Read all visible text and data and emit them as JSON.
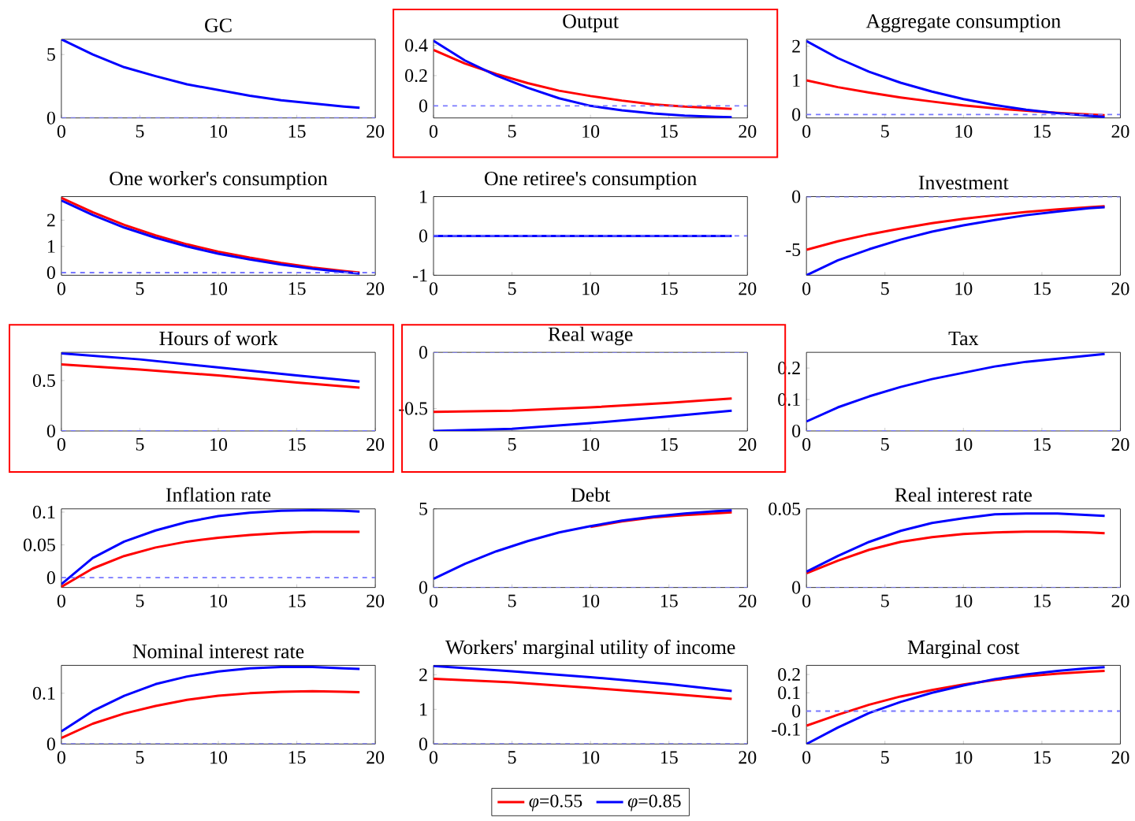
{
  "chart_data": [
    {
      "type": "line",
      "title": "GC",
      "xlim": [
        0,
        20
      ],
      "xticks": [
        0,
        5,
        10,
        15,
        20
      ],
      "ylim": [
        0,
        6.2
      ],
      "yticks": [
        0,
        5
      ],
      "ref_lines": [
        {
          "axis": "y",
          "value": 0,
          "color": "#7777ff",
          "line_style": "dashed"
        }
      ],
      "series": [
        {
          "color": "#0000ff",
          "x": [
            0,
            2,
            4,
            6,
            8,
            10,
            12,
            14,
            16,
            18,
            19
          ],
          "values": [
            6.2,
            5.0,
            4.0,
            3.3,
            2.65,
            2.2,
            1.75,
            1.4,
            1.15,
            0.9,
            0.8
          ]
        }
      ]
    },
    {
      "type": "line",
      "title": "Output",
      "xlim": [
        0,
        20
      ],
      "xticks": [
        0,
        5,
        10,
        15,
        20
      ],
      "ylim": [
        -0.08,
        0.44
      ],
      "yticks": [
        0,
        0.2,
        0.4
      ],
      "ref_lines": [
        {
          "axis": "y",
          "value": 0,
          "color": "#7777ff",
          "line_style": "dashed"
        }
      ],
      "series": [
        {
          "color": "#ff0000",
          "x": [
            0,
            2,
            4,
            6,
            8,
            10,
            12,
            14,
            16,
            18,
            19
          ],
          "values": [
            0.37,
            0.28,
            0.21,
            0.15,
            0.1,
            0.065,
            0.035,
            0.01,
            -0.005,
            -0.015,
            -0.02
          ]
        },
        {
          "color": "#0000ff",
          "x": [
            0,
            2,
            4,
            6,
            8,
            10,
            12,
            14,
            16,
            18,
            19
          ],
          "values": [
            0.43,
            0.3,
            0.2,
            0.12,
            0.05,
            0.0,
            -0.03,
            -0.05,
            -0.065,
            -0.073,
            -0.075
          ]
        }
      ]
    },
    {
      "type": "line",
      "title": "Aggregate consumption",
      "xlim": [
        0,
        20
      ],
      "xticks": [
        0,
        5,
        10,
        15,
        20
      ],
      "ylim": [
        -0.1,
        2.2
      ],
      "yticks": [
        0,
        1,
        2
      ],
      "ref_lines": [
        {
          "axis": "y",
          "value": 0,
          "color": "#7777ff",
          "line_style": "dashed"
        }
      ],
      "series": [
        {
          "color": "#ff0000",
          "x": [
            0,
            2,
            4,
            6,
            8,
            10,
            12,
            14,
            16,
            18,
            19
          ],
          "values": [
            1.0,
            0.8,
            0.64,
            0.5,
            0.38,
            0.27,
            0.18,
            0.11,
            0.05,
            0.0,
            -0.02
          ]
        },
        {
          "color": "#0000ff",
          "x": [
            0,
            2,
            4,
            6,
            8,
            10,
            12,
            14,
            16,
            18,
            19
          ],
          "values": [
            2.15,
            1.65,
            1.25,
            0.93,
            0.67,
            0.45,
            0.28,
            0.14,
            0.04,
            -0.04,
            -0.07
          ]
        }
      ]
    },
    {
      "type": "line",
      "title": "One worker's consumption",
      "xlim": [
        0,
        20
      ],
      "xticks": [
        0,
        5,
        10,
        15,
        20
      ],
      "ylim": [
        -0.1,
        2.9
      ],
      "yticks": [
        0,
        1,
        2
      ],
      "ref_lines": [
        {
          "axis": "y",
          "value": 0,
          "color": "#7777ff",
          "line_style": "dashed"
        }
      ],
      "series": [
        {
          "color": "#ff0000",
          "x": [
            0,
            2,
            4,
            6,
            8,
            10,
            12,
            14,
            16,
            18,
            19
          ],
          "values": [
            2.85,
            2.3,
            1.82,
            1.42,
            1.08,
            0.8,
            0.57,
            0.37,
            0.2,
            0.06,
            0.0
          ]
        },
        {
          "color": "#0000ff",
          "x": [
            0,
            2,
            4,
            6,
            8,
            10,
            12,
            14,
            16,
            18,
            19
          ],
          "values": [
            2.75,
            2.2,
            1.72,
            1.33,
            1.0,
            0.72,
            0.5,
            0.31,
            0.15,
            0.02,
            -0.04
          ]
        }
      ]
    },
    {
      "type": "line",
      "title": "One retiree's consumption",
      "xlim": [
        0,
        20
      ],
      "xticks": [
        0,
        5,
        10,
        15,
        20
      ],
      "ylim": [
        -1,
        1
      ],
      "yticks": [
        -1,
        0,
        1
      ],
      "ref_lines": [
        {
          "axis": "y",
          "value": 0,
          "color": "#7777ff",
          "line_style": "dashed"
        }
      ],
      "series": [
        {
          "color": "#0000ff",
          "x": [
            0,
            19
          ],
          "values": [
            0,
            0
          ]
        }
      ]
    },
    {
      "type": "line",
      "title": "Investment",
      "xlim": [
        0,
        20
      ],
      "xticks": [
        0,
        5,
        10,
        15,
        20
      ],
      "ylim": [
        -7.4,
        0
      ],
      "yticks": [
        -5,
        0
      ],
      "ref_lines": [
        {
          "axis": "y",
          "value": 0,
          "color": "#7777ff",
          "line_style": "dashed"
        }
      ],
      "series": [
        {
          "color": "#ff0000",
          "x": [
            0,
            2,
            4,
            6,
            8,
            10,
            12,
            14,
            16,
            18,
            19
          ],
          "values": [
            -5.0,
            -4.2,
            -3.55,
            -3.0,
            -2.5,
            -2.1,
            -1.75,
            -1.45,
            -1.2,
            -1.0,
            -0.9
          ]
        },
        {
          "color": "#0000ff",
          "x": [
            0,
            2,
            4,
            6,
            8,
            10,
            12,
            14,
            16,
            18,
            19
          ],
          "values": [
            -7.4,
            -6.0,
            -4.95,
            -4.05,
            -3.3,
            -2.7,
            -2.2,
            -1.75,
            -1.4,
            -1.1,
            -1.0
          ]
        }
      ]
    },
    {
      "type": "line",
      "title": "Hours of work",
      "xlim": [
        0,
        20
      ],
      "xticks": [
        0,
        5,
        10,
        15,
        20
      ],
      "ylim": [
        0,
        0.78
      ],
      "yticks": [
        0,
        0.5
      ],
      "ref_lines": [
        {
          "axis": "y",
          "value": 0,
          "color": "#7777ff",
          "line_style": "dashed"
        }
      ],
      "series": [
        {
          "color": "#ff0000",
          "x": [
            0,
            5,
            10,
            15,
            19
          ],
          "values": [
            0.66,
            0.61,
            0.55,
            0.48,
            0.43
          ]
        },
        {
          "color": "#0000ff",
          "x": [
            0,
            5,
            10,
            15,
            19
          ],
          "values": [
            0.77,
            0.71,
            0.63,
            0.55,
            0.49
          ]
        }
      ]
    },
    {
      "type": "line",
      "title": "Real wage",
      "xlim": [
        0,
        20
      ],
      "xticks": [
        0,
        5,
        10,
        15,
        20
      ],
      "ylim": [
        -0.7,
        0
      ],
      "yticks": [
        -0.5,
        0
      ],
      "ref_lines": [
        {
          "axis": "y",
          "value": 0,
          "color": "#7777ff",
          "line_style": "dashed"
        }
      ],
      "series": [
        {
          "color": "#ff0000",
          "x": [
            0,
            5,
            10,
            15,
            19
          ],
          "values": [
            -0.53,
            -0.52,
            -0.49,
            -0.45,
            -0.41
          ]
        },
        {
          "color": "#0000ff",
          "x": [
            0,
            5,
            10,
            15,
            19
          ],
          "values": [
            -0.7,
            -0.68,
            -0.63,
            -0.57,
            -0.52
          ]
        }
      ]
    },
    {
      "type": "line",
      "title": "Tax",
      "xlim": [
        0,
        20
      ],
      "xticks": [
        0,
        5,
        10,
        15,
        20
      ],
      "ylim": [
        0,
        0.25
      ],
      "yticks": [
        0,
        0.1,
        0.2
      ],
      "ref_lines": [
        {
          "axis": "y",
          "value": 0,
          "color": "#7777ff",
          "line_style": "dashed"
        }
      ],
      "series": [
        {
          "color": "#0000ff",
          "x": [
            0,
            2,
            4,
            6,
            8,
            10,
            12,
            14,
            16,
            18,
            19
          ],
          "values": [
            0.03,
            0.075,
            0.11,
            0.14,
            0.165,
            0.185,
            0.205,
            0.22,
            0.23,
            0.24,
            0.245
          ]
        }
      ]
    },
    {
      "type": "line",
      "title": "Inflation rate",
      "xlim": [
        0,
        20
      ],
      "xticks": [
        0,
        5,
        10,
        15,
        20
      ],
      "ylim": [
        -0.015,
        0.105
      ],
      "yticks": [
        0,
        0.05,
        0.1
      ],
      "ref_lines": [
        {
          "axis": "y",
          "value": 0,
          "color": "#7777ff",
          "line_style": "dashed"
        }
      ],
      "series": [
        {
          "color": "#ff0000",
          "x": [
            0,
            2,
            4,
            6,
            8,
            10,
            12,
            14,
            16,
            18,
            19
          ],
          "values": [
            -0.014,
            0.014,
            0.033,
            0.046,
            0.055,
            0.061,
            0.065,
            0.068,
            0.07,
            0.07,
            0.07
          ]
        },
        {
          "color": "#0000ff",
          "x": [
            0,
            2,
            4,
            6,
            8,
            10,
            12,
            14,
            16,
            18,
            19
          ],
          "values": [
            -0.01,
            0.03,
            0.055,
            0.072,
            0.085,
            0.094,
            0.099,
            0.102,
            0.103,
            0.102,
            0.101
          ]
        }
      ]
    },
    {
      "type": "line",
      "title": "Debt",
      "xlim": [
        0,
        20
      ],
      "xticks": [
        0,
        5,
        10,
        15,
        20
      ],
      "ylim": [
        0,
        5
      ],
      "yticks": [
        0,
        5
      ],
      "ref_lines": [
        {
          "axis": "y",
          "value": 0,
          "color": "#7777ff",
          "line_style": "dashed"
        }
      ],
      "series": [
        {
          "color": "#ff0000",
          "x": [
            10,
            12,
            14,
            16,
            18,
            19
          ],
          "values": [
            3.85,
            4.2,
            4.45,
            4.6,
            4.72,
            4.78
          ]
        },
        {
          "color": "#0000ff",
          "x": [
            0,
            2,
            4,
            6,
            8,
            10,
            12,
            14,
            16,
            18,
            19
          ],
          "values": [
            0.55,
            1.5,
            2.3,
            2.95,
            3.5,
            3.9,
            4.25,
            4.5,
            4.7,
            4.85,
            4.9
          ]
        }
      ]
    },
    {
      "type": "line",
      "title": "Real interest rate",
      "xlim": [
        0,
        20
      ],
      "xticks": [
        0,
        5,
        10,
        15,
        20
      ],
      "ylim": [
        0,
        0.05
      ],
      "yticks": [
        0,
        0.05
      ],
      "ref_lines": [
        {
          "axis": "y",
          "value": 0,
          "color": "#7777ff",
          "line_style": "dashed"
        }
      ],
      "series": [
        {
          "color": "#ff0000",
          "x": [
            0,
            2,
            4,
            6,
            8,
            10,
            12,
            14,
            16,
            18,
            19
          ],
          "values": [
            0.009,
            0.017,
            0.024,
            0.029,
            0.032,
            0.034,
            0.035,
            0.0355,
            0.0355,
            0.035,
            0.0345
          ]
        },
        {
          "color": "#0000ff",
          "x": [
            0,
            2,
            4,
            6,
            8,
            10,
            12,
            14,
            16,
            18,
            19
          ],
          "values": [
            0.01,
            0.02,
            0.029,
            0.036,
            0.041,
            0.044,
            0.0465,
            0.047,
            0.047,
            0.046,
            0.0455
          ]
        }
      ]
    },
    {
      "type": "line",
      "title": "Nominal interest rate",
      "xlim": [
        0,
        20
      ],
      "xticks": [
        0,
        5,
        10,
        15,
        20
      ],
      "ylim": [
        0,
        0.155
      ],
      "yticks": [
        0,
        0.1
      ],
      "ref_lines": [
        {
          "axis": "y",
          "value": 0,
          "color": "#7777ff",
          "line_style": "dashed"
        }
      ],
      "series": [
        {
          "color": "#ff0000",
          "x": [
            0,
            2,
            4,
            6,
            8,
            10,
            12,
            14,
            16,
            18,
            19
          ],
          "values": [
            0.012,
            0.04,
            0.06,
            0.075,
            0.087,
            0.095,
            0.1,
            0.103,
            0.104,
            0.103,
            0.102
          ]
        },
        {
          "color": "#0000ff",
          "x": [
            0,
            2,
            4,
            6,
            8,
            10,
            12,
            14,
            16,
            18,
            19
          ],
          "values": [
            0.025,
            0.065,
            0.095,
            0.118,
            0.133,
            0.143,
            0.149,
            0.152,
            0.152,
            0.149,
            0.148
          ]
        }
      ]
    },
    {
      "type": "line",
      "title": "Workers' marginal utility of income",
      "xlim": [
        0,
        20
      ],
      "xticks": [
        0,
        5,
        10,
        15,
        20
      ],
      "ylim": [
        0,
        2.27
      ],
      "yticks": [
        0,
        1,
        2
      ],
      "legend": "bottom",
      "ref_lines": [
        {
          "axis": "y",
          "value": 0,
          "color": "#7777ff",
          "line_style": "dashed"
        }
      ],
      "series": [
        {
          "name": "*φ*=0.55",
          "color": "#ff0000",
          "x": [
            0,
            5,
            10,
            15,
            19
          ],
          "values": [
            1.88,
            1.78,
            1.62,
            1.45,
            1.3
          ]
        },
        {
          "name": "*φ*=0.85",
          "color": "#0000ff",
          "x": [
            0,
            5,
            10,
            15,
            19
          ],
          "values": [
            2.25,
            2.1,
            1.93,
            1.73,
            1.53
          ]
        }
      ]
    },
    {
      "type": "line",
      "title": "Marginal cost",
      "xlim": [
        0,
        20
      ],
      "xticks": [
        0,
        5,
        10,
        15,
        20
      ],
      "ylim": [
        -0.18,
        0.25
      ],
      "yticks": [
        -0.1,
        0,
        0.1,
        0.2
      ],
      "ref_lines": [
        {
          "axis": "y",
          "value": 0,
          "color": "#7777ff",
          "line_style": "dashed"
        }
      ],
      "series": [
        {
          "color": "#ff0000",
          "x": [
            0,
            2,
            4,
            6,
            8,
            10,
            12,
            14,
            16,
            18,
            19
          ],
          "values": [
            -0.08,
            -0.02,
            0.035,
            0.08,
            0.115,
            0.145,
            0.17,
            0.19,
            0.205,
            0.215,
            0.22
          ]
        },
        {
          "color": "#0000ff",
          "x": [
            0,
            2,
            4,
            6,
            8,
            10,
            12,
            14,
            16,
            18,
            19
          ],
          "values": [
            -0.18,
            -0.09,
            -0.01,
            0.05,
            0.1,
            0.14,
            0.175,
            0.2,
            0.22,
            0.235,
            0.24
          ]
        }
      ]
    }
  ]
}
